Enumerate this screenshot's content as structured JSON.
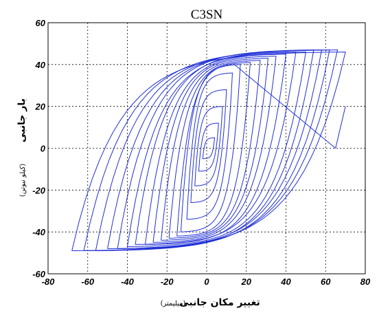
{
  "chart_data": {
    "type": "line",
    "title": "C3SN",
    "xlabel": "تغییر مکان جانبی",
    "xunit": "(میلیمتر)",
    "ylabel": "بار جانبی",
    "yunit": "(کیلو نیوتن)",
    "xlim": [
      -80,
      80
    ],
    "ylim": [
      -60,
      60
    ],
    "xticks": [
      -80,
      -60,
      -40,
      -20,
      0,
      20,
      40,
      60,
      80
    ],
    "yticks": [
      60,
      40,
      20,
      0,
      -20,
      -40,
      -60
    ],
    "xtick_labels": [
      "-80",
      "-60",
      "-40",
      "-20",
      "0",
      "20",
      "40",
      "60",
      "80"
    ],
    "ytick_labels": [
      "60",
      "40",
      "20",
      "0",
      "-20",
      "-40",
      "-60"
    ],
    "grid": true,
    "color": "#1f2fd6",
    "loops": [
      {
        "xmin": -2,
        "xmax": 4,
        "fmax": 5,
        "fmin": -5
      },
      {
        "xmin": -4,
        "xmax": 6,
        "fmax": 12,
        "fmin": -11
      },
      {
        "xmin": -6,
        "xmax": 8,
        "fmax": 20,
        "fmin": -18
      },
      {
        "xmin": -8,
        "xmax": 10,
        "fmax": 28,
        "fmin": -26
      },
      {
        "xmin": -10,
        "xmax": 13,
        "fmax": 36,
        "fmin": -34
      },
      {
        "xmin": -13,
        "xmax": 17,
        "fmax": 40,
        "fmin": -40
      },
      {
        "xmin": -15,
        "xmax": 22,
        "fmax": 41,
        "fmin": -42
      },
      {
        "xmin": -19,
        "xmax": 27,
        "fmax": 42,
        "fmin": -43
      },
      {
        "xmin": -23,
        "xmax": 31,
        "fmax": 43,
        "fmin": -44
      },
      {
        "xmin": -27,
        "xmax": 35,
        "fmax": 44,
        "fmin": -45
      },
      {
        "xmin": -31,
        "xmax": 40,
        "fmax": 45,
        "fmin": -46
      },
      {
        "xmin": -36,
        "xmax": 45,
        "fmax": 46,
        "fmin": -46
      },
      {
        "xmin": -40,
        "xmax": 50,
        "fmax": 46,
        "fmin": -47
      },
      {
        "xmin": -45,
        "xmax": 54,
        "fmax": 47,
        "fmin": -48
      },
      {
        "xmin": -50,
        "xmax": 58,
        "fmax": 47,
        "fmin": -48
      },
      {
        "xmin": -56,
        "xmax": 62,
        "fmax": 47,
        "fmin": -49
      },
      {
        "xmin": -62,
        "xmax": 66,
        "fmax": 47,
        "fmin": -49
      },
      {
        "xmin": -68,
        "xmax": 70,
        "fmax": 46,
        "fmin": -49
      }
    ],
    "final_branch": [
      [
        70,
        20
      ],
      [
        65,
        0
      ]
    ],
    "diagonal_branch": [
      [
        14,
        40
      ],
      [
        65,
        0
      ]
    ]
  }
}
